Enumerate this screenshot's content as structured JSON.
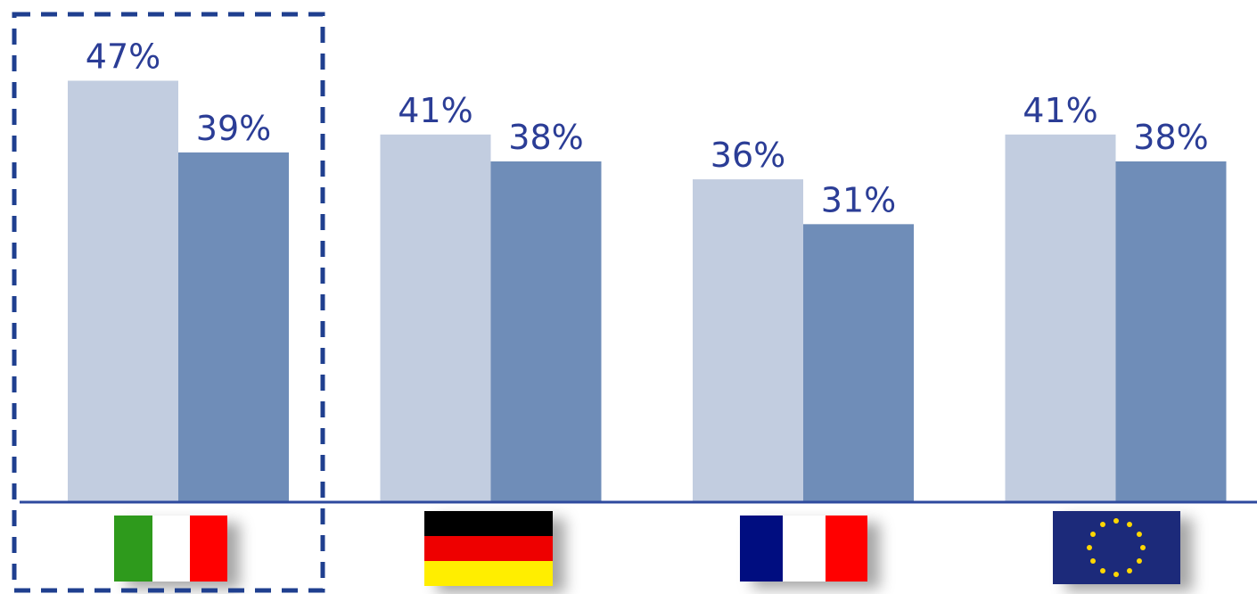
{
  "chart_data": {
    "type": "bar",
    "categories": [
      null,
      null,
      null,
      null
    ],
    "series": [
      {
        "color": "#c2cde0",
        "values": [
          47,
          41,
          36,
          41
        ],
        "value_labels": [
          "47%",
          "41%",
          "36%",
          "41%"
        ]
      },
      {
        "color": "#6f8db8",
        "values": [
          39,
          38,
          31,
          38
        ],
        "value_labels": [
          "39%",
          "38%",
          "31%",
          "38%"
        ]
      }
    ],
    "ylim": [
      0,
      56
    ]
  }
}
